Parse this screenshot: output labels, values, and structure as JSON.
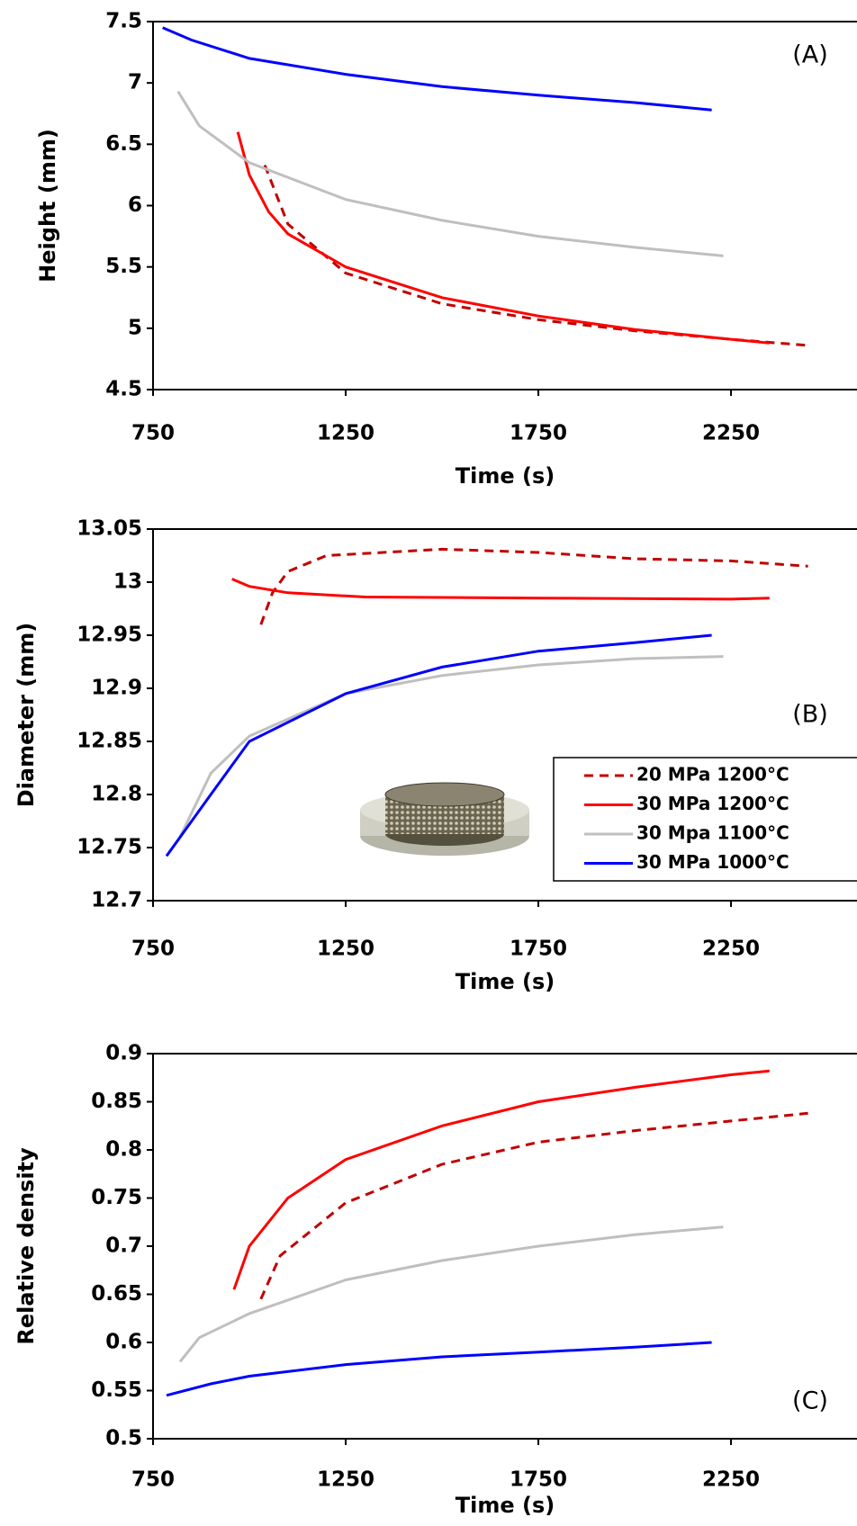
{
  "chart_data": [
    {
      "type": "line",
      "annotation": "(A)",
      "x_label": "Time (s)",
      "y_label": "Height (mm)",
      "xlim": [
        750,
        2577
      ],
      "xticks": [
        750,
        1250,
        1750,
        2250
      ],
      "ylim": [
        4.5,
        7.5
      ],
      "yticks": [
        4.5,
        5,
        5.5,
        6,
        6.5,
        7,
        7.5
      ],
      "series": [
        {
          "color": "#c00000",
          "dashed": true,
          "x": [
            1040,
            1100,
            1250,
            1500,
            1750,
            2000,
            2250,
            2450
          ],
          "values": [
            6.33,
            5.85,
            5.45,
            5.2,
            5.07,
            4.98,
            4.91,
            4.86
          ]
        },
        {
          "color": "#ff0000",
          "dashed": false,
          "x": [
            970,
            1000,
            1050,
            1100,
            1250,
            1500,
            1750,
            2000,
            2250,
            2350
          ],
          "values": [
            6.6,
            6.25,
            5.95,
            5.77,
            5.5,
            5.25,
            5.1,
            4.99,
            4.91,
            4.88
          ]
        },
        {
          "color": "#bfbfbf",
          "dashed": false,
          "x": [
            815,
            870,
            1000,
            1250,
            1500,
            1750,
            2000,
            2230
          ],
          "values": [
            6.93,
            6.65,
            6.35,
            6.05,
            5.88,
            5.75,
            5.66,
            5.59
          ]
        },
        {
          "color": "#0000ff",
          "dashed": false,
          "x": [
            775,
            850,
            1000,
            1250,
            1500,
            1750,
            2000,
            2200
          ],
          "values": [
            7.45,
            7.35,
            7.2,
            7.07,
            6.97,
            6.9,
            6.84,
            6.78
          ]
        }
      ]
    },
    {
      "type": "line",
      "annotation": "(B)",
      "x_label": "Time (s)",
      "y_label": "Diameter (mm)",
      "xlim": [
        750,
        2577
      ],
      "xticks": [
        750,
        1250,
        1750,
        2250
      ],
      "ylim": [
        12.7,
        13.05
      ],
      "yticks": [
        12.7,
        12.75,
        12.8,
        12.85,
        12.9,
        12.95,
        13,
        13.05
      ],
      "series": [
        {
          "name": "20 MPa 1200°C",
          "color": "#c00000",
          "dashed": true,
          "x": [
            1030,
            1060,
            1100,
            1200,
            1500,
            1750,
            2000,
            2250,
            2450
          ],
          "values": [
            12.96,
            12.99,
            13.01,
            13.025,
            13.031,
            13.028,
            13.022,
            13.02,
            13.015
          ]
        },
        {
          "name": "30 MPa 1200°C",
          "color": "#ff0000",
          "dashed": false,
          "x": [
            955,
            1000,
            1100,
            1300,
            1750,
            2250,
            2350
          ],
          "values": [
            13.003,
            12.996,
            12.99,
            12.986,
            12.985,
            12.984,
            12.985
          ]
        },
        {
          "name": "30 Mpa 1100°C",
          "color": "#bfbfbf",
          "dashed": false,
          "x": [
            820,
            900,
            1000,
            1250,
            1500,
            1750,
            2000,
            2230
          ],
          "values": [
            12.76,
            12.82,
            12.855,
            12.895,
            12.912,
            12.922,
            12.928,
            12.93
          ]
        },
        {
          "name": "30 MPa 1000°C",
          "color": "#0000ff",
          "dashed": false,
          "x": [
            785,
            900,
            1000,
            1250,
            1500,
            1750,
            2000,
            2200
          ],
          "values": [
            12.742,
            12.8,
            12.85,
            12.895,
            12.92,
            12.935,
            12.943,
            12.95
          ]
        }
      ]
    },
    {
      "type": "line",
      "annotation": "(C)",
      "x_label": "Time (s)",
      "y_label": "Relative density",
      "xlim": [
        750,
        2577
      ],
      "xticks": [
        750,
        1250,
        1750,
        2250
      ],
      "ylim": [
        0.5,
        0.9
      ],
      "yticks": [
        0.5,
        0.55,
        0.6,
        0.65,
        0.7,
        0.75,
        0.8,
        0.85,
        0.9
      ],
      "series": [
        {
          "color": "#c00000",
          "dashed": true,
          "x": [
            1030,
            1080,
            1250,
            1500,
            1750,
            2000,
            2250,
            2450
          ],
          "values": [
            0.645,
            0.69,
            0.745,
            0.785,
            0.808,
            0.82,
            0.83,
            0.838
          ]
        },
        {
          "color": "#ff0000",
          "dashed": false,
          "x": [
            960,
            1000,
            1100,
            1250,
            1500,
            1750,
            2000,
            2250,
            2350
          ],
          "values": [
            0.655,
            0.7,
            0.75,
            0.79,
            0.825,
            0.85,
            0.865,
            0.878,
            0.882
          ]
        },
        {
          "color": "#bfbfbf",
          "dashed": false,
          "x": [
            820,
            870,
            1000,
            1250,
            1500,
            1750,
            2000,
            2230
          ],
          "values": [
            0.58,
            0.605,
            0.63,
            0.665,
            0.685,
            0.7,
            0.712,
            0.72
          ]
        },
        {
          "color": "#0000ff",
          "dashed": false,
          "x": [
            785,
            900,
            1000,
            1250,
            1500,
            1750,
            2000,
            2200
          ],
          "values": [
            0.545,
            0.557,
            0.565,
            0.577,
            0.585,
            0.59,
            0.595,
            0.6
          ]
        }
      ]
    }
  ]
}
